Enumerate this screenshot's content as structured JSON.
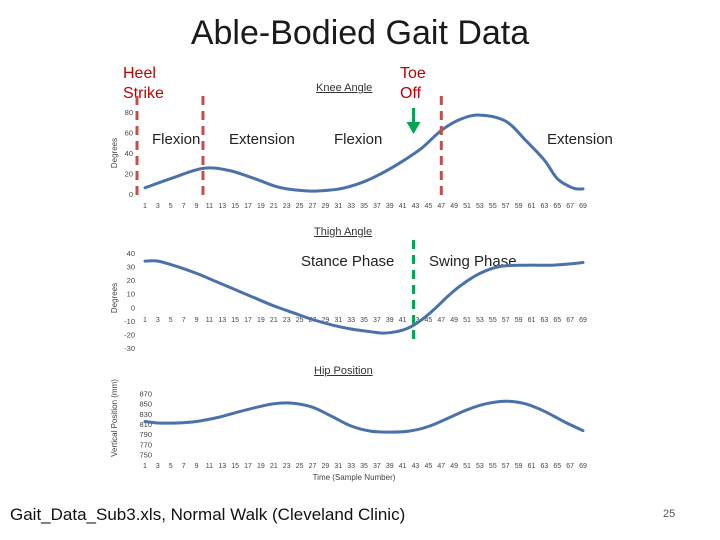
{
  "slide": {
    "title": "Able-Bodied Gait Data",
    "heel_strike": [
      "Heel",
      "Strike"
    ],
    "toe_off": [
      "Toe",
      "Off"
    ],
    "phase_labels": {
      "flexion_1": "Flexion",
      "extension_1": "Extension",
      "flexion_2": "Flexion",
      "extension_2": "Extension",
      "stance": "Stance Phase",
      "swing": "Swing Phase"
    },
    "footer": "Gait_Data_Sub3.xls, Normal Walk (Cleveland Clinic)",
    "slide_number": "25"
  },
  "colors": {
    "series_line": "#4a72a8",
    "heel_strike": "#c00000",
    "toe_off": "#00a651",
    "marker_dash": "#c0504d",
    "toe_off_dash": "#00a651"
  },
  "markers": {
    "heel_strike_sample": 1,
    "toe_off_sample": 43,
    "stance_swing_sample": 43,
    "knee_flexion_extension_samples": [
      10,
      47
    ]
  },
  "chart_data": [
    {
      "type": "line",
      "title": "Knee Angle",
      "xlabel": "",
      "ylabel": "Degrees",
      "ylim": [
        0,
        80
      ],
      "yticks": [
        0,
        20,
        40,
        60,
        80
      ],
      "xticks": [
        1,
        3,
        5,
        7,
        9,
        11,
        13,
        15,
        17,
        19,
        21,
        23,
        25,
        27,
        29,
        31,
        33,
        35,
        37,
        39,
        41,
        43,
        45,
        47,
        49,
        51,
        53,
        55,
        57,
        59,
        61,
        63,
        65,
        67,
        69
      ],
      "x": [
        1,
        5,
        10,
        14,
        18,
        21,
        23,
        26,
        28,
        30,
        32,
        35,
        38,
        41,
        44,
        47,
        50,
        53,
        57,
        60,
        63,
        65,
        67,
        68,
        69
      ],
      "values": [
        6,
        15,
        25,
        23,
        15,
        8,
        5,
        3,
        3,
        4,
        6,
        12,
        21,
        32,
        45,
        62,
        73,
        77,
        71,
        53,
        33,
        15,
        7,
        5,
        5
      ]
    },
    {
      "type": "line",
      "title": "Thigh Angle",
      "xlabel": "",
      "ylabel": "Degrees",
      "ylim": [
        -30,
        40
      ],
      "yticks": [
        -30,
        -20,
        -10,
        0,
        10,
        20,
        30,
        40
      ],
      "xticks": [
        1,
        3,
        5,
        7,
        9,
        11,
        13,
        15,
        17,
        19,
        21,
        23,
        25,
        27,
        29,
        31,
        33,
        35,
        37,
        39,
        41,
        43,
        45,
        47,
        49,
        51,
        53,
        55,
        57,
        59,
        61,
        63,
        65,
        67,
        69
      ],
      "x": [
        1,
        3,
        6,
        9,
        12,
        15,
        18,
        21,
        24,
        27,
        30,
        33,
        36,
        38,
        40,
        42,
        44,
        46,
        48,
        50,
        53,
        56,
        60,
        64,
        67,
        69
      ],
      "values": [
        34,
        34,
        30,
        25,
        19,
        13,
        7,
        1,
        -4,
        -9,
        -13,
        -16,
        -18,
        -19,
        -18,
        -15,
        -9,
        -1,
        8,
        16,
        25,
        30,
        31,
        31,
        32,
        33
      ]
    },
    {
      "type": "line",
      "title": "Hip Position",
      "xlabel": "Time (Sample Number)",
      "ylabel": "Vertical Position (mm)",
      "ylim": [
        745,
        875
      ],
      "yticks": [
        750,
        770,
        790,
        810,
        830,
        850,
        870
      ],
      "xticks": [
        1,
        3,
        5,
        7,
        9,
        11,
        13,
        15,
        17,
        19,
        21,
        23,
        25,
        27,
        29,
        31,
        33,
        35,
        37,
        39,
        41,
        43,
        45,
        47,
        49,
        51,
        53,
        55,
        57,
        59,
        61,
        63,
        65,
        67,
        69
      ],
      "x": [
        1,
        3,
        6,
        9,
        12,
        15,
        18,
        21,
        24,
        27,
        30,
        33,
        36,
        39,
        42,
        45,
        48,
        51,
        54,
        57,
        60,
        63,
        66,
        69
      ],
      "values": [
        815,
        812,
        812,
        815,
        822,
        832,
        842,
        850,
        851,
        843,
        825,
        806,
        796,
        794,
        796,
        805,
        821,
        838,
        850,
        855,
        850,
        835,
        815,
        797
      ]
    }
  ]
}
